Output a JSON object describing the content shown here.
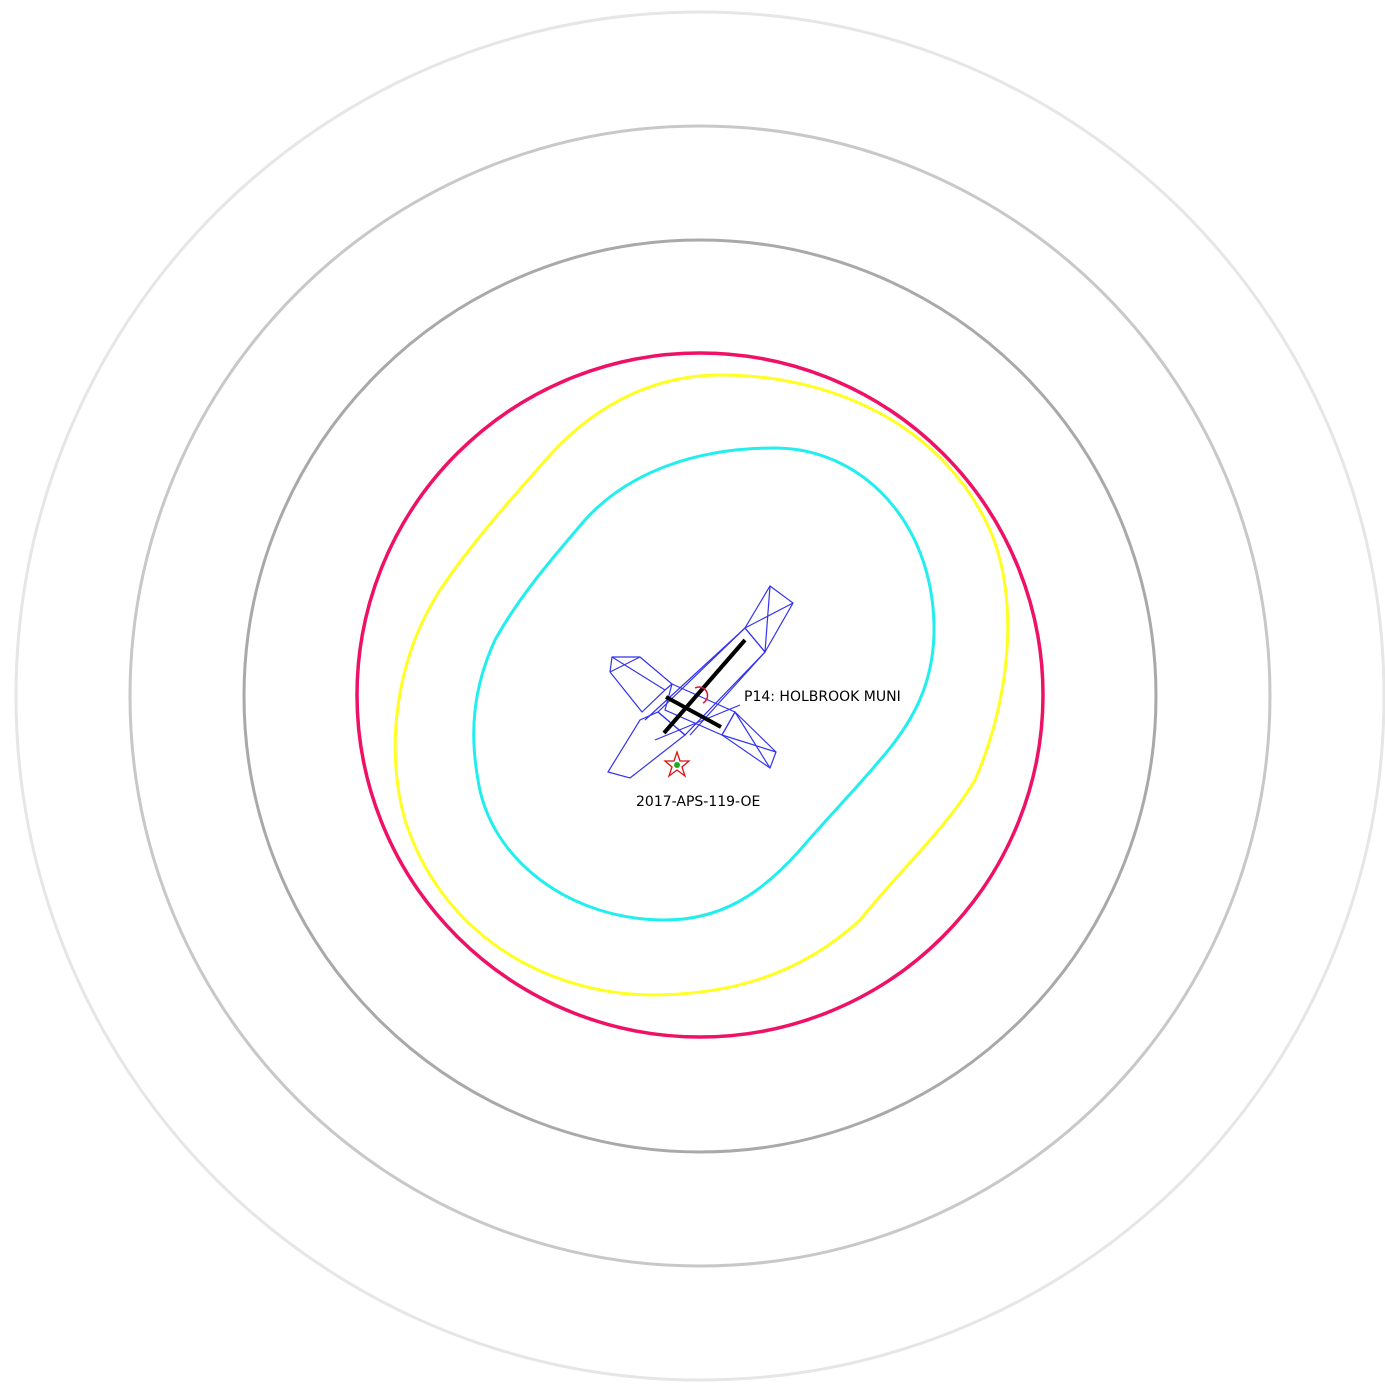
{
  "airport": {
    "label": "P14: HOLBROOK MUNI"
  },
  "obstacle": {
    "label": "2017-APS-119-OE"
  },
  "colors": {
    "range_ring_outer": "#e6e6e6",
    "range_ring_middle": "#c8c8c8",
    "range_ring_inner": "#a9a9a9",
    "horizontal_surface": "#ee1166",
    "conical_surface": "#ffff22",
    "approach_surface": "#22eeee",
    "runway_surfaces": "#3333ee",
    "runway": "#000000",
    "obstacle_star": "#dd1111",
    "obstacle_dot": "#22aa22",
    "airport_marker": "#dd1133"
  }
}
